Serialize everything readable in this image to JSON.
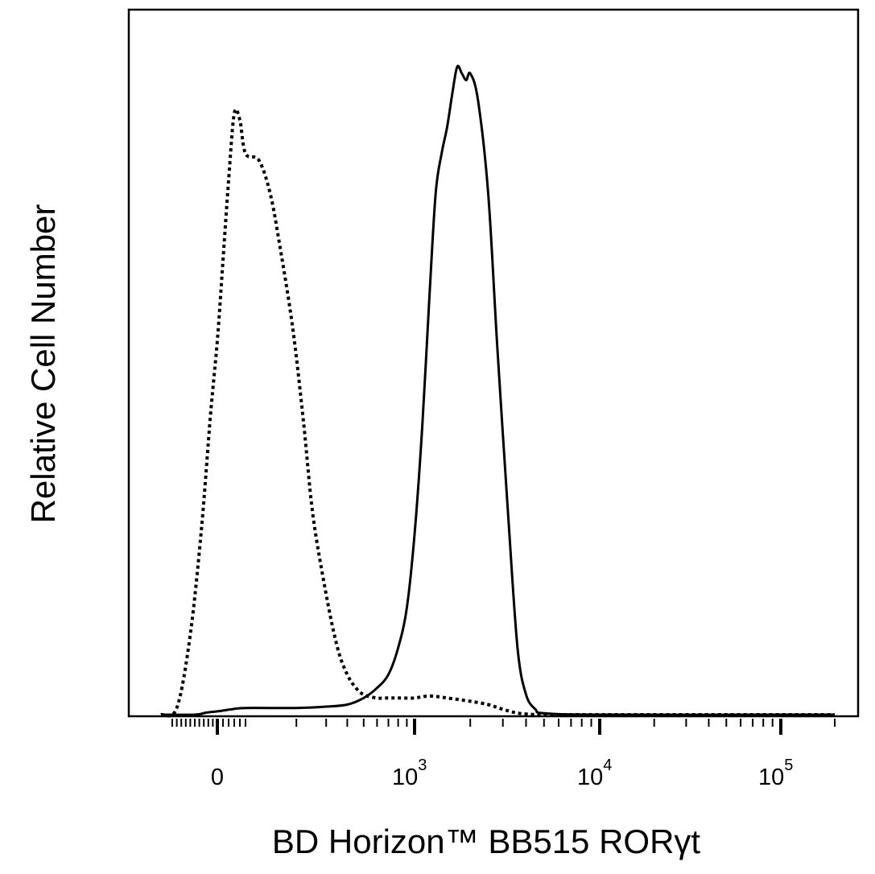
{
  "chart_data": {
    "type": "line",
    "title": "",
    "xlabel": "BD Horizon™ BB515  RORγt",
    "ylabel": "Relative Cell Number",
    "x_scale": "biexponential",
    "xlim": [
      -250,
      200000
    ],
    "ylim": [
      0,
      100
    ],
    "grid": false,
    "x_tick_labels": [
      {
        "base": "0",
        "exp": ""
      },
      {
        "base": "10",
        "exp": "3"
      },
      {
        "base": "10",
        "exp": "4"
      },
      {
        "base": "10",
        "exp": "5"
      }
    ],
    "series": [
      {
        "style": "dotted",
        "x": [
          -250,
          -180,
          -120,
          -70,
          -30,
          0,
          20,
          40,
          60,
          80,
          100,
          120,
          140,
          160,
          190,
          220,
          250,
          300,
          350,
          400,
          450,
          500,
          600,
          700,
          800,
          1000,
          1200,
          1500,
          2000,
          2500,
          3000,
          3500,
          4000,
          5000,
          10000,
          100000,
          200000
        ],
        "y": [
          0,
          1,
          12,
          28,
          45,
          56,
          68,
          80,
          90,
          89,
          84,
          83,
          78,
          70,
          58,
          44,
          30,
          18,
          10,
          6,
          4,
          3,
          2.5,
          2.5,
          2.5,
          2.5,
          2.8,
          2.5,
          2,
          1.5,
          0.8,
          0.3,
          0.1,
          0,
          0,
          0,
          0
        ]
      },
      {
        "style": "solid",
        "x": [
          -250,
          -100,
          -50,
          0,
          50,
          100,
          200,
          300,
          400,
          500,
          600,
          700,
          800,
          900,
          1000,
          1100,
          1200,
          1300,
          1400,
          1500,
          1600,
          1700,
          1800,
          1900,
          2000,
          2200,
          2500,
          2800,
          3200,
          3600,
          4000,
          4500,
          5000,
          10000,
          100000,
          200000
        ],
        "y": [
          0,
          0,
          0.3,
          0.5,
          0.8,
          1,
          1,
          1.2,
          1.5,
          2.5,
          4,
          6,
          10,
          16,
          27,
          43,
          62,
          78,
          84,
          88,
          93,
          97,
          96,
          95,
          96,
          92,
          78,
          55,
          30,
          10,
          3,
          0.8,
          0.2,
          0,
          0,
          0
        ]
      }
    ]
  }
}
